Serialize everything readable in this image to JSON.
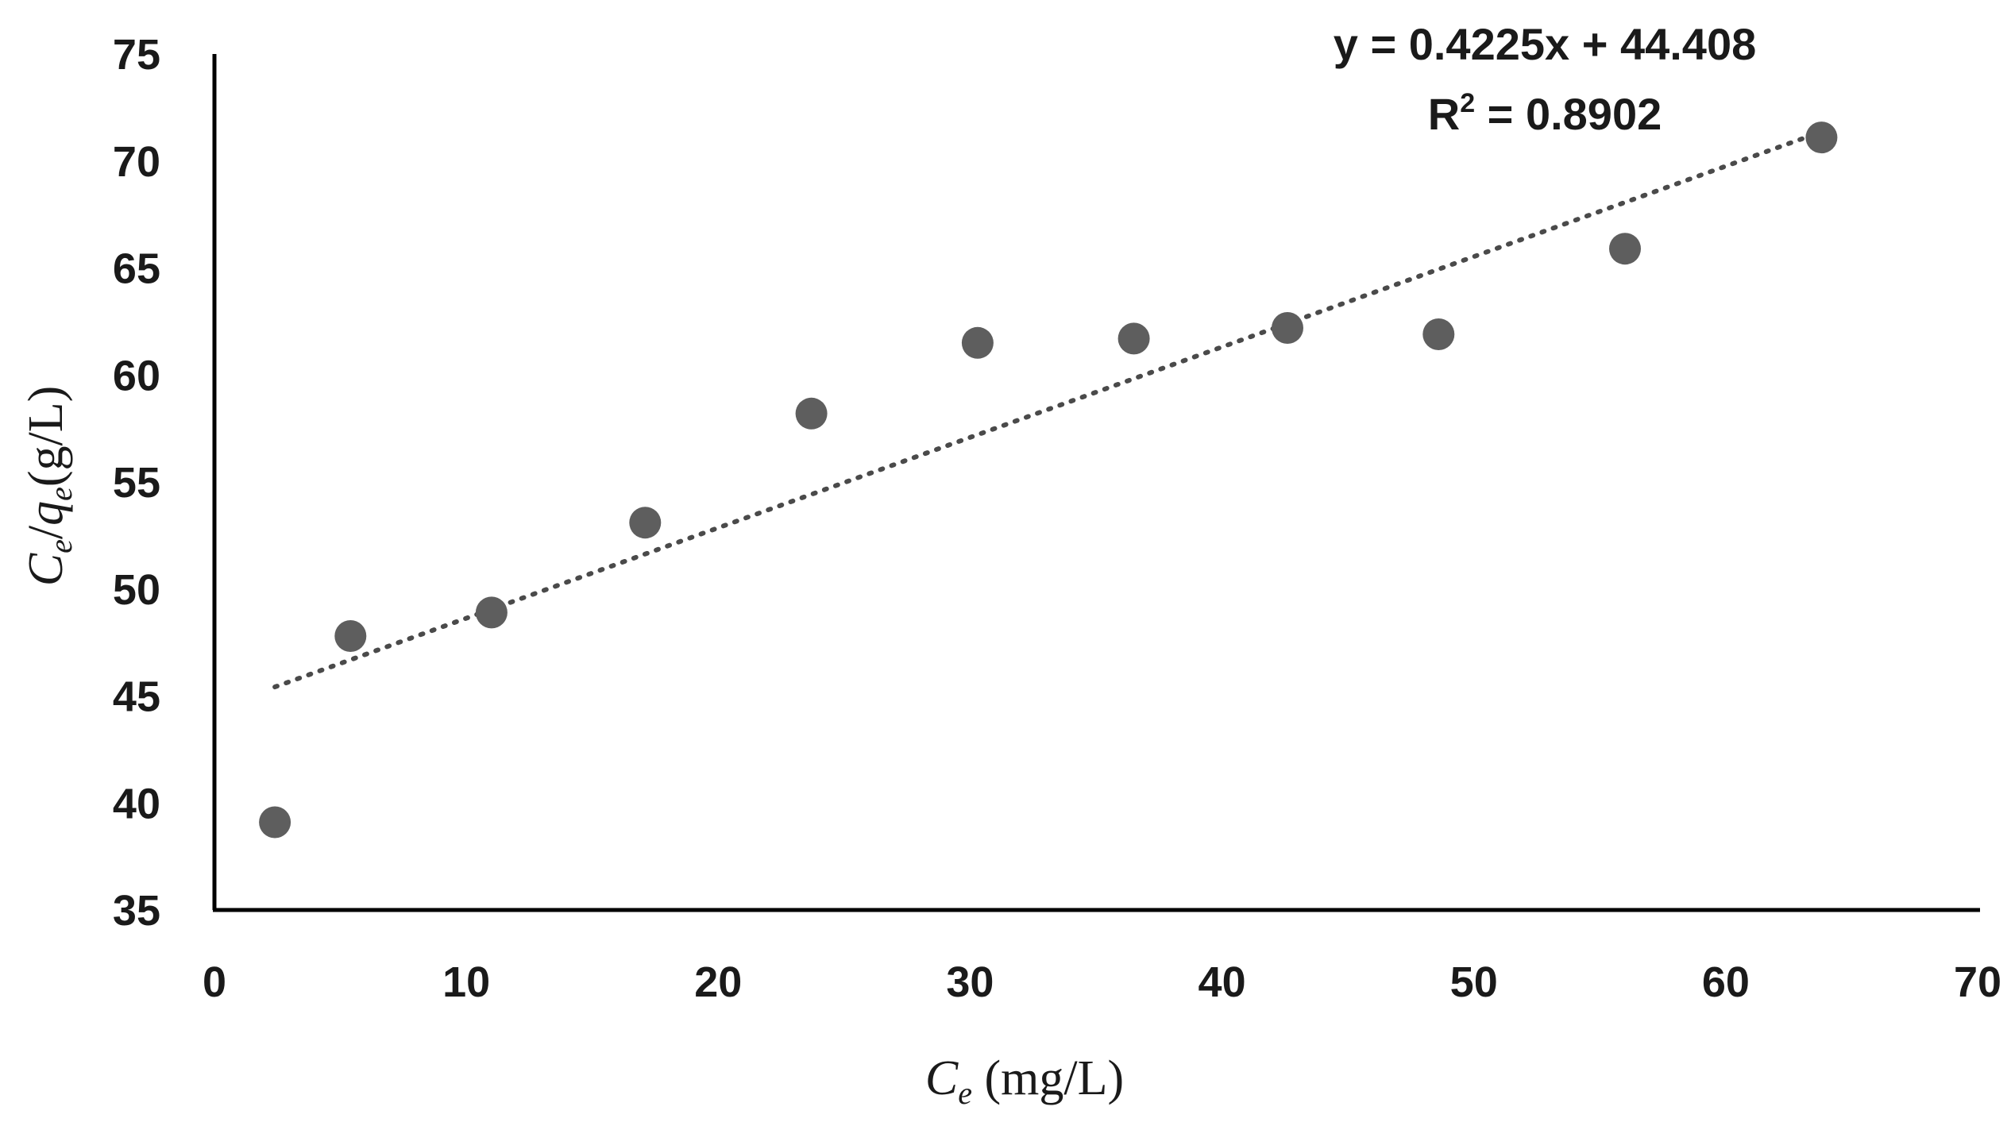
{
  "chart_data": {
    "type": "scatter",
    "title": "",
    "x": [
      2.4,
      5.4,
      11.0,
      17.1,
      23.7,
      30.3,
      36.5,
      42.6,
      48.6,
      56.0,
      63.8
    ],
    "y": [
      39.1,
      47.8,
      48.9,
      53.1,
      58.2,
      61.5,
      61.7,
      62.2,
      61.9,
      65.9,
      71.1
    ],
    "xlim": [
      0,
      70
    ],
    "ylim": [
      35,
      75
    ],
    "xticks": [
      0,
      10,
      20,
      30,
      40,
      50,
      60,
      70
    ],
    "yticks": [
      35,
      40,
      45,
      50,
      55,
      60,
      65,
      70,
      75
    ],
    "xlabel": {
      "main": "C",
      "sub": "e",
      "rest": " (mg/L)"
    },
    "ylabel": {
      "c": "C",
      "c_sub": "e",
      "slash": "/",
      "q": "q",
      "q_sub": "e",
      "rest": "(g/L)"
    },
    "trendline": {
      "type": "linear",
      "slope": 0.4225,
      "intercept": 44.408,
      "x_range": [
        2.4,
        63.8
      ],
      "style": "dotted"
    },
    "annotations": {
      "equation": "y = 0.4225x + 44.408",
      "r2_prefix": "R",
      "r2_sup": "2",
      "r2_rest": " = 0.8902"
    },
    "grid": false,
    "legend": "none",
    "colors": {
      "point": "#5e5e5e",
      "axis": "#000000",
      "trendline": "#4a4a4a",
      "text": "#1a1a1a"
    }
  }
}
